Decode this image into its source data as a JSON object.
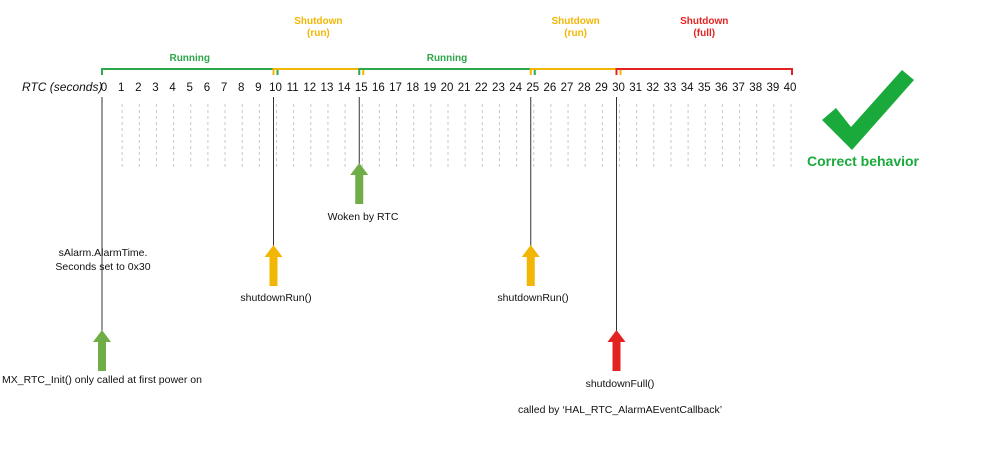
{
  "axis": {
    "label": "RTC (seconds)",
    "ticks": [
      "0",
      "1",
      "2",
      "3",
      "4",
      "5",
      "6",
      "7",
      "8",
      "9",
      "10",
      "11",
      "12",
      "13",
      "14",
      "15",
      "16",
      "17",
      "18",
      "19",
      "20",
      "21",
      "22",
      "23",
      "24",
      "25",
      "26",
      "27",
      "28",
      "29",
      "30",
      "31",
      "32",
      "33",
      "34",
      "35",
      "36",
      "37",
      "38",
      "39",
      "40"
    ]
  },
  "phases": [
    {
      "start": 0,
      "end": 10,
      "lines": [
        "Running"
      ],
      "color": "#2ea64a"
    },
    {
      "start": 10,
      "end": 15,
      "lines": [
        "Shutdown",
        "(run)"
      ],
      "color": "#f2b705"
    },
    {
      "start": 15,
      "end": 25,
      "lines": [
        "Running"
      ],
      "color": "#2ea64a"
    },
    {
      "start": 25,
      "end": 30,
      "lines": [
        "Shutdown",
        "(run)"
      ],
      "color": "#f2b705"
    },
    {
      "start": 30,
      "end": 40,
      "lines": [
        "Shutdown",
        "(full)"
      ],
      "color": "#e32322"
    }
  ],
  "events": [
    {
      "name": "mx-rtc-init",
      "at": 0,
      "direction": "up",
      "color": "#70ad47",
      "label": "MX_RTC_Init() only called at first power on"
    },
    {
      "name": "shutdown-run-1",
      "at": 10,
      "direction": "up",
      "color": "#f2b705",
      "label": "shutdownRun()"
    },
    {
      "name": "woken-by-rtc",
      "at": 15,
      "direction": "up",
      "color": "#70ad47",
      "label": "Woken by RTC"
    },
    {
      "name": "shutdown-run-2",
      "at": 25,
      "direction": "up",
      "color": "#f2b705",
      "label": "shutdownRun()"
    },
    {
      "name": "shutdown-full",
      "at": 30,
      "direction": "up",
      "color": "#e32322",
      "label": "shutdownFull()"
    }
  ],
  "notes": {
    "alarm_line1": "sAlarm.AlarmTime.",
    "alarm_line2": "Seconds set to 0x30",
    "callback": "called by ‘HAL_RTC_AlarmAEventCallback’"
  },
  "verdict": {
    "label": "Correct behavior",
    "icon": "checkmark-icon",
    "color": "#1aaa3c"
  }
}
